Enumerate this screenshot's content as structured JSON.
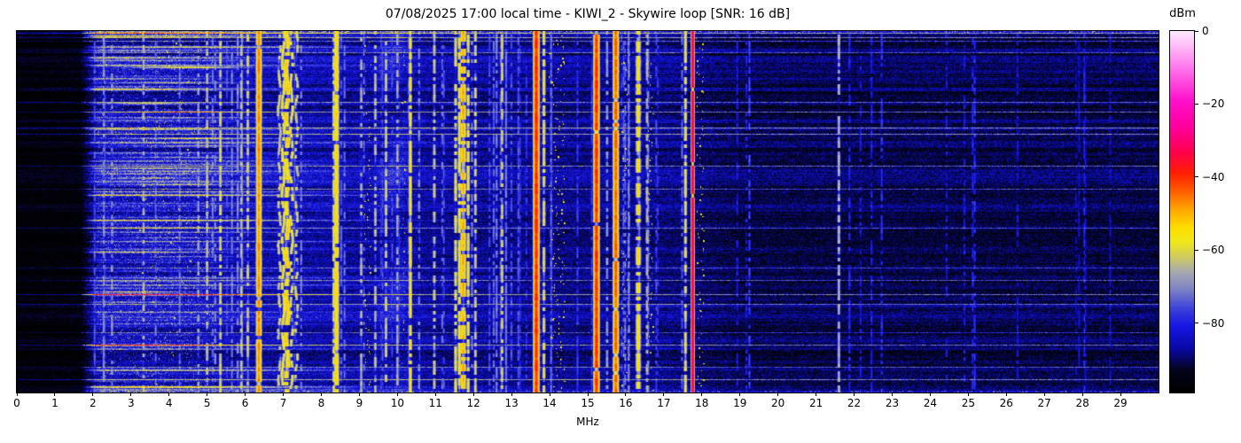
{
  "chart_data": {
    "type": "heatmap",
    "title": "07/08/2025 17:00 local time - KIWI_2 - Skywire loop [SNR: 16 dB]",
    "xlabel": "MHz",
    "ylabel": "",
    "x_range_mhz": [
      0,
      30
    ],
    "x_ticks": [
      0,
      1,
      2,
      3,
      4,
      5,
      6,
      7,
      8,
      9,
      10,
      11,
      12,
      13,
      14,
      15,
      16,
      17,
      18,
      19,
      20,
      21,
      22,
      23,
      24,
      25,
      26,
      27,
      28,
      29
    ],
    "y_ticks": [],
    "colorbar": {
      "label": "dBm",
      "tick_values": [
        0,
        -20,
        -40,
        -60,
        -80
      ],
      "tick_labels": [
        "0",
        "−20",
        "−40",
        "−60",
        "−80"
      ],
      "range_dbm": [
        -99,
        0
      ],
      "colormap_stops": [
        [
          -99,
          "#000000"
        ],
        [
          -93,
          "#04041c"
        ],
        [
          -87,
          "#0909a8"
        ],
        [
          -81,
          "#1616e4"
        ],
        [
          -76,
          "#3e42da"
        ],
        [
          -71,
          "#7b81c6"
        ],
        [
          -66,
          "#a8aab0"
        ],
        [
          -62,
          "#cfcb62"
        ],
        [
          -58,
          "#efe81c"
        ],
        [
          -54,
          "#ffdf00"
        ],
        [
          -49,
          "#ffa800"
        ],
        [
          -44,
          "#ff6000"
        ],
        [
          -39,
          "#ff2000"
        ],
        [
          -33,
          "#ff0050"
        ],
        [
          -26,
          "#ff00a0"
        ],
        [
          -19,
          "#ff10cc"
        ],
        [
          -10,
          "#ff78ee"
        ],
        [
          0,
          "#ffeaff"
        ]
      ]
    },
    "noise_floor": {
      "dark_band_mhz": [
        0,
        1.7
      ],
      "dark_dbm": -96.5,
      "low_band_dbm": -84.5,
      "mid_band_dbm": -86.5,
      "high_band_start_mhz": 19,
      "high_band_dbm": -90.5
    },
    "signals": [
      {
        "mhz": 2.5,
        "dbm": -68,
        "w": 1,
        "flicker": 0.55
      },
      {
        "mhz": 3.33,
        "dbm": -64,
        "w": 1,
        "flicker": 0.5
      },
      {
        "mhz": 4.77,
        "dbm": -66,
        "w": 1,
        "flicker": 0.5
      },
      {
        "mhz": 5.0,
        "dbm": -63,
        "w": 1,
        "flicker": 0.45
      },
      {
        "mhz": 5.35,
        "dbm": -60,
        "w": 1,
        "flicker": 0.35
      },
      {
        "mhz": 5.9,
        "dbm": -62,
        "w": 1,
        "flicker": 0.45
      },
      {
        "mhz": 6.07,
        "dbm": -60,
        "w": 1,
        "flicker": 0.4
      },
      {
        "mhz": 6.36,
        "dbm": -47,
        "w": 2,
        "flicker": 0.04
      },
      {
        "mhz": 6.9,
        "dbm": -60,
        "w": 1,
        "flicker": 0.45,
        "wavy": 1
      },
      {
        "mhz": 7.0,
        "dbm": -56,
        "w": 1,
        "flicker": 0.3,
        "wavy": 1
      },
      {
        "mhz": 7.1,
        "dbm": -53,
        "w": 2,
        "flicker": 0.22,
        "wavy": 1
      },
      {
        "mhz": 7.22,
        "dbm": -57,
        "w": 1,
        "flicker": 0.38,
        "wavy": 1
      },
      {
        "mhz": 7.35,
        "dbm": -60,
        "w": 1,
        "flicker": 0.5,
        "wavy": 1
      },
      {
        "mhz": 8.33,
        "dbm": -58,
        "w": 1,
        "flicker": 0.3
      },
      {
        "mhz": 8.4,
        "dbm": -54,
        "w": 2,
        "flicker": 0.06
      },
      {
        "mhz": 9.05,
        "dbm": -64,
        "w": 1,
        "flicker": 0.5
      },
      {
        "mhz": 9.42,
        "dbm": -62,
        "w": 1,
        "flicker": 0.4
      },
      {
        "mhz": 9.7,
        "dbm": -61,
        "w": 1,
        "flicker": 0.35
      },
      {
        "mhz": 10.0,
        "dbm": -65,
        "w": 1,
        "flicker": 0.45
      },
      {
        "mhz": 10.34,
        "dbm": -55,
        "w": 1,
        "flicker": 0.22
      },
      {
        "mhz": 10.97,
        "dbm": -62,
        "w": 1,
        "flicker": 0.45
      },
      {
        "mhz": 11.53,
        "dbm": -58,
        "w": 1,
        "flicker": 0.3
      },
      {
        "mhz": 11.63,
        "dbm": -55,
        "w": 1,
        "flicker": 0.25
      },
      {
        "mhz": 11.73,
        "dbm": -50,
        "w": 2,
        "flicker": 0.3
      },
      {
        "mhz": 11.86,
        "dbm": -57,
        "w": 1,
        "flicker": 0.35
      },
      {
        "mhz": 12.05,
        "dbm": -60,
        "w": 1,
        "flicker": 0.5
      },
      {
        "mhz": 12.75,
        "dbm": -60,
        "w": 1,
        "flicker": 0.35
      },
      {
        "mhz": 13.65,
        "dbm": -39,
        "w": 2,
        "flicker": 0.02
      },
      {
        "mhz": 13.85,
        "dbm": -57,
        "w": 1,
        "flicker": 0.3
      },
      {
        "mhz": 15.23,
        "dbm": -40,
        "w": 2,
        "flicker": 0.03
      },
      {
        "mhz": 15.51,
        "dbm": -67,
        "w": 1,
        "flicker": 0.4
      },
      {
        "mhz": 15.74,
        "dbm": -44,
        "w": 2,
        "flicker": 0.05
      },
      {
        "mhz": 16.33,
        "dbm": -54,
        "w": 2,
        "flicker": 0.3
      },
      {
        "mhz": 16.56,
        "dbm": -64,
        "w": 1,
        "flicker": 0.4
      },
      {
        "mhz": 17.57,
        "dbm": -57,
        "w": 1,
        "flicker": 0.35
      },
      {
        "mhz": 17.76,
        "dbm": -27,
        "w": 1,
        "flicker": 0.02
      },
      {
        "mhz": 19.25,
        "dbm": -76,
        "w": 1,
        "flicker": 0.4
      },
      {
        "mhz": 21.6,
        "dbm": -64,
        "w": 1,
        "flicker": 0.3
      },
      {
        "mhz": 24.9,
        "dbm": -80,
        "w": 1,
        "flicker": 0.5
      },
      {
        "mhz": 28.05,
        "dbm": -79,
        "w": 1,
        "flicker": 0.45
      }
    ],
    "dotted_bands": [
      {
        "from": 3.2,
        "to": 4.6,
        "density": 1.2,
        "dbm": -62
      },
      {
        "from": 9.12,
        "to": 9.3,
        "density": 0.55,
        "dbm": -60
      },
      {
        "from": 10.12,
        "to": 10.2,
        "density": 0.3,
        "dbm": -63
      },
      {
        "from": 13.97,
        "to": 14.4,
        "density": 1.5,
        "dbm": -58
      },
      {
        "from": 15.88,
        "to": 16.05,
        "density": 0.6,
        "dbm": -59
      },
      {
        "from": 16.6,
        "to": 16.72,
        "density": 0.45,
        "dbm": -62
      },
      {
        "from": 17.86,
        "to": 18.05,
        "density": 0.7,
        "dbm": -59
      }
    ],
    "codar_band": {
      "from": 9.35,
      "to": 10.5,
      "boost_db": 6
    },
    "texture": {
      "streak_probability": 0.75,
      "streak_db": [
        4,
        26
      ],
      "gray_line_probability": 0.05,
      "gray_line_db": [
        13,
        20
      ],
      "faint_carriers_low": {
        "count": 58,
        "range_mhz": [
          1.95,
          18.3
        ],
        "dbm": -73
      },
      "faint_carriers_high": {
        "count": 14,
        "range_mhz": [
          18.3,
          29.8
        ],
        "dbm": -81
      }
    },
    "render_seed": 11
  }
}
